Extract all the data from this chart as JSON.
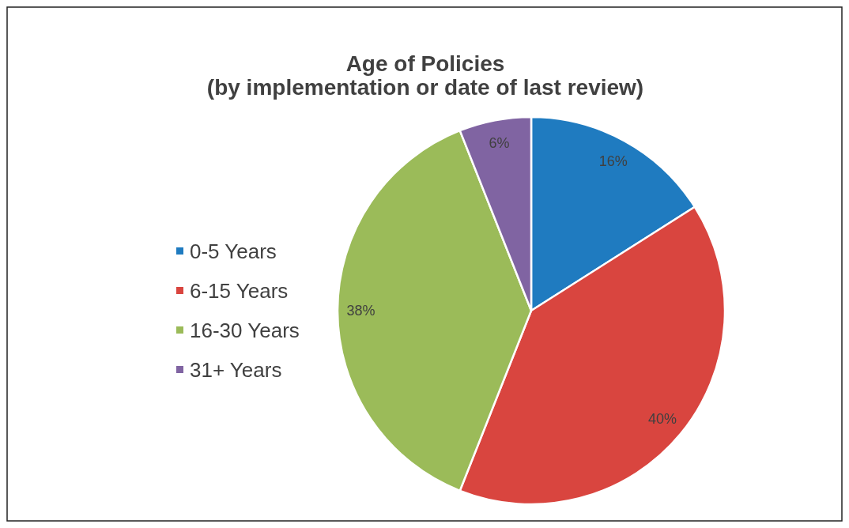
{
  "chart_data": {
    "type": "pie",
    "title": "Age of Policies\n(by implementation or date of last review)",
    "categories": [
      "0-5 Years",
      "6-15 Years",
      "16-30 Years",
      "31+ Years"
    ],
    "values": [
      16,
      40,
      38,
      6
    ],
    "colors": [
      "#1f7bc0",
      "#d9453f",
      "#9bbb59",
      "#8064a2"
    ],
    "value_labels": [
      "16%",
      "40%",
      "38%",
      "6%"
    ],
    "legend": "left"
  }
}
